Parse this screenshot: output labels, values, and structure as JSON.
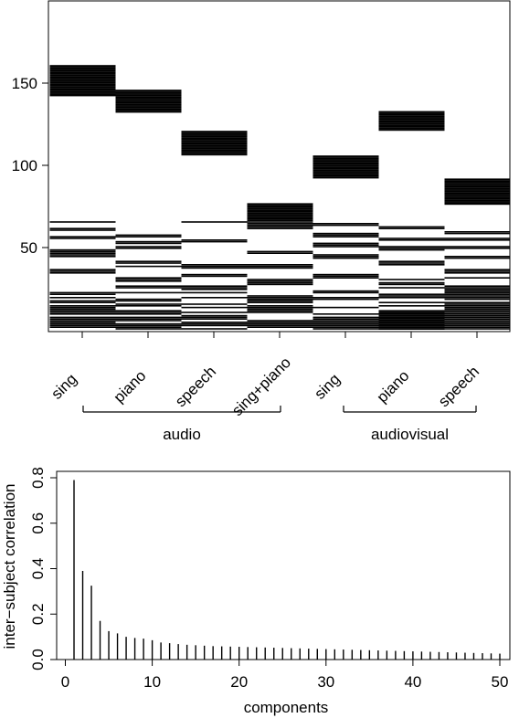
{
  "chart_data": [
    {
      "type": "heatmap",
      "categories": [
        "sing",
        "piano",
        "speech",
        "sing+piano",
        "sing",
        "piano",
        "speech"
      ],
      "groups": [
        {
          "label": "audio",
          "categories": [
            0,
            3
          ]
        },
        {
          "label": "audiovisual",
          "categories": [
            4,
            6
          ]
        }
      ],
      "y_ticks": [
        50,
        100,
        150
      ],
      "ylim": [
        1,
        200
      ],
      "columns": [
        {
          "blocks": [
            [
              143,
              161
            ]
          ],
          "lines": [
            2,
            3,
            4,
            5,
            6,
            7,
            8,
            10,
            11,
            12,
            13,
            14,
            15,
            17,
            18,
            20,
            22,
            23,
            35,
            36,
            37,
            45,
            46,
            47,
            48,
            49,
            56,
            57,
            61,
            62,
            66
          ]
        },
        {
          "blocks": [
            [
              133,
              146
            ]
          ],
          "lines": [
            1,
            2,
            3,
            4,
            6,
            7,
            8,
            10,
            11,
            12,
            15,
            16,
            18,
            19,
            23,
            26,
            27,
            30,
            31,
            32,
            39,
            41,
            42,
            50,
            51,
            53,
            54,
            57,
            58
          ]
        },
        {
          "blocks": [
            [
              107,
              121
            ]
          ],
          "lines": [
            1,
            3,
            4,
            5,
            7,
            8,
            9,
            11,
            14,
            16,
            20,
            23,
            25,
            26,
            27,
            33,
            34,
            38,
            39,
            40,
            54,
            55,
            66
          ]
        },
        {
          "blocks": [
            [
              68,
              77
            ]
          ],
          "lines": [
            2,
            3,
            4,
            5,
            6,
            11,
            12,
            13,
            14,
            15,
            17,
            18,
            19,
            20,
            21,
            28,
            29,
            30,
            31,
            38,
            39,
            40,
            47,
            48,
            62,
            63,
            64,
            65,
            66,
            67
          ]
        },
        {
          "blocks": [
            [
              93,
              106
            ]
          ],
          "lines": [
            1,
            2,
            3,
            4,
            5,
            6,
            7,
            8,
            10,
            14,
            19,
            20,
            23,
            24,
            32,
            33,
            34,
            44,
            45,
            46,
            51,
            52,
            53,
            57,
            58,
            59,
            64,
            65
          ]
        },
        {
          "blocks": [
            [
              122,
              133
            ],
            [
              1,
              12
            ]
          ],
          "lines": [
            15,
            17,
            20,
            21,
            22,
            26,
            28,
            29,
            31,
            40,
            41,
            42,
            49,
            50,
            51,
            55,
            56,
            62,
            63
          ]
        },
        {
          "blocks": [
            [
              77,
              92
            ]
          ],
          "lines": [
            1,
            2,
            3,
            4,
            5,
            6,
            7,
            8,
            9,
            10,
            11,
            12,
            13,
            14,
            15,
            16,
            17,
            19,
            20,
            21,
            22,
            23,
            24,
            25,
            26,
            27,
            32,
            35,
            36,
            37,
            44,
            45,
            50,
            51,
            55,
            56,
            59,
            60
          ]
        }
      ]
    },
    {
      "type": "bar",
      "xlabel": "components",
      "ylabel": "inter−subject correlation",
      "xlim": [
        1,
        50
      ],
      "ylim": [
        0,
        0.8
      ],
      "x_ticks": [
        0,
        10,
        20,
        30,
        40,
        50
      ],
      "y_ticks": [
        "0.0",
        "0.2",
        "0.4",
        "0.6",
        "0.8"
      ],
      "values": [
        0.79,
        0.39,
        0.325,
        0.17,
        0.125,
        0.115,
        0.1,
        0.095,
        0.092,
        0.085,
        0.075,
        0.072,
        0.068,
        0.065,
        0.063,
        0.061,
        0.059,
        0.058,
        0.057,
        0.056,
        0.055,
        0.054,
        0.053,
        0.052,
        0.051,
        0.05,
        0.049,
        0.048,
        0.047,
        0.046,
        0.045,
        0.044,
        0.043,
        0.042,
        0.041,
        0.04,
        0.039,
        0.038,
        0.037,
        0.036,
        0.035,
        0.034,
        0.033,
        0.032,
        0.031,
        0.03,
        0.029,
        0.028,
        0.027,
        0.026
      ]
    }
  ]
}
